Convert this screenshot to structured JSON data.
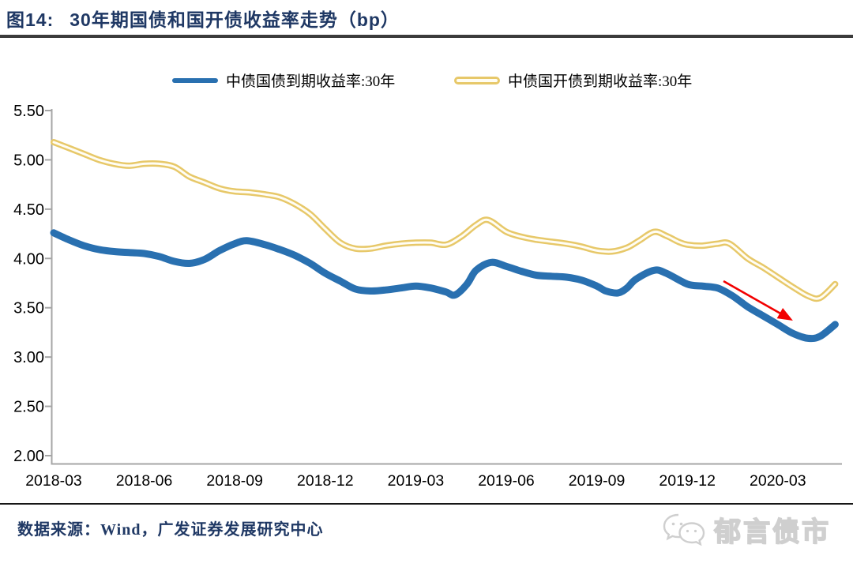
{
  "figure": {
    "label": "图14:",
    "title": "30年期国债和国开债收益率走势（bp）"
  },
  "legend": [
    {
      "label": "中债国债到期收益率:30年",
      "color": "#2970B0",
      "style": "solid"
    },
    {
      "label": "中债国开债到期收益率:30年",
      "color": "#E7C869",
      "style": "hollow"
    }
  ],
  "footer": {
    "source": "数据来源：Wind，广发证券发展研究中心",
    "watermark": "郁言债市",
    "watermark_icon": "wechat-icon",
    "watermark_color": "#cfcfcf"
  },
  "chart_data": {
    "type": "line",
    "title": "30年期国债和国开债收益率走势（bp）",
    "x_unit": "months since 2018-03",
    "ylim": [
      2.0,
      5.5
    ],
    "grid": false,
    "legend_position": "top",
    "axis_color": "#A6A6A6",
    "y_ticks": [
      {
        "v": 5.5,
        "label": "5.50"
      },
      {
        "v": 5.0,
        "label": "5.00"
      },
      {
        "v": 4.5,
        "label": "4.50"
      },
      {
        "v": 4.0,
        "label": "4.00"
      },
      {
        "v": 3.5,
        "label": "3.50"
      },
      {
        "v": 3.0,
        "label": "3.00"
      },
      {
        "v": 2.5,
        "label": "2.50"
      },
      {
        "v": 2.0,
        "label": "2.00"
      }
    ],
    "x_ticks": [
      {
        "t": 0,
        "label": "2018-03"
      },
      {
        "t": 3,
        "label": "2018-06"
      },
      {
        "t": 6,
        "label": "2018-09"
      },
      {
        "t": 9,
        "label": "2018-12"
      },
      {
        "t": 12,
        "label": "2019-03"
      },
      {
        "t": 15,
        "label": "2019-06"
      },
      {
        "t": 18,
        "label": "2019-09"
      },
      {
        "t": 21,
        "label": "2019-12"
      },
      {
        "t": 24,
        "label": "2020-03"
      }
    ],
    "series": [
      {
        "name": "中债国开债到期收益率:30年",
        "key": "cdb-30y",
        "color": "#E7C869",
        "inner_color": "#FFFDF4",
        "width": 8,
        "inner_width": 3,
        "points": [
          [
            0,
            5.18
          ],
          [
            0.5,
            5.12
          ],
          [
            1,
            5.06
          ],
          [
            1.5,
            5.0
          ],
          [
            2,
            4.96
          ],
          [
            2.5,
            4.94
          ],
          [
            3,
            4.96
          ],
          [
            3.5,
            4.96
          ],
          [
            4,
            4.93
          ],
          [
            4.5,
            4.83
          ],
          [
            5,
            4.77
          ],
          [
            5.5,
            4.71
          ],
          [
            6,
            4.68
          ],
          [
            6.5,
            4.67
          ],
          [
            7,
            4.65
          ],
          [
            7.5,
            4.62
          ],
          [
            8,
            4.55
          ],
          [
            8.5,
            4.45
          ],
          [
            9,
            4.3
          ],
          [
            9.5,
            4.16
          ],
          [
            10,
            4.1
          ],
          [
            10.5,
            4.1
          ],
          [
            11,
            4.13
          ],
          [
            11.5,
            4.15
          ],
          [
            12,
            4.16
          ],
          [
            12.5,
            4.16
          ],
          [
            13,
            4.14
          ],
          [
            13.5,
            4.22
          ],
          [
            14,
            4.34
          ],
          [
            14.4,
            4.39
          ],
          [
            15,
            4.27
          ],
          [
            15.5,
            4.22
          ],
          [
            16,
            4.19
          ],
          [
            16.5,
            4.17
          ],
          [
            17,
            4.15
          ],
          [
            17.5,
            4.12
          ],
          [
            18,
            4.08
          ],
          [
            18.5,
            4.07
          ],
          [
            19,
            4.11
          ],
          [
            19.4,
            4.18
          ],
          [
            19.9,
            4.27
          ],
          [
            20.3,
            4.23
          ],
          [
            20.7,
            4.17
          ],
          [
            21,
            4.14
          ],
          [
            21.5,
            4.13
          ],
          [
            22,
            4.15
          ],
          [
            22.4,
            4.15
          ],
          [
            23,
            4.0
          ],
          [
            23.5,
            3.91
          ],
          [
            24,
            3.81
          ],
          [
            24.5,
            3.71
          ],
          [
            25,
            3.62
          ],
          [
            25.4,
            3.6
          ],
          [
            25.9,
            3.74
          ]
        ]
      },
      {
        "name": "中债国债到期收益率:30年",
        "key": "cgb-30y",
        "color": "#2970B0",
        "width": 9,
        "points": [
          [
            0,
            4.26
          ],
          [
            0.5,
            4.19
          ],
          [
            1,
            4.13
          ],
          [
            1.5,
            4.09
          ],
          [
            2,
            4.07
          ],
          [
            2.5,
            4.06
          ],
          [
            3,
            4.05
          ],
          [
            3.5,
            4.02
          ],
          [
            4,
            3.97
          ],
          [
            4.5,
            3.95
          ],
          [
            5,
            3.99
          ],
          [
            5.5,
            4.08
          ],
          [
            6,
            4.15
          ],
          [
            6.4,
            4.18
          ],
          [
            7,
            4.14
          ],
          [
            7.5,
            4.09
          ],
          [
            8,
            4.03
          ],
          [
            8.5,
            3.95
          ],
          [
            9,
            3.85
          ],
          [
            9.5,
            3.77
          ],
          [
            10,
            3.69
          ],
          [
            10.5,
            3.67
          ],
          [
            11,
            3.68
          ],
          [
            11.5,
            3.7
          ],
          [
            12,
            3.72
          ],
          [
            12.5,
            3.7
          ],
          [
            13,
            3.66
          ],
          [
            13.3,
            3.63
          ],
          [
            13.7,
            3.74
          ],
          [
            14,
            3.88
          ],
          [
            14.5,
            3.96
          ],
          [
            15,
            3.92
          ],
          [
            15.5,
            3.87
          ],
          [
            16,
            3.83
          ],
          [
            16.5,
            3.82
          ],
          [
            17,
            3.81
          ],
          [
            17.5,
            3.78
          ],
          [
            18,
            3.72
          ],
          [
            18.3,
            3.67
          ],
          [
            18.7,
            3.65
          ],
          [
            19,
            3.7
          ],
          [
            19.3,
            3.79
          ],
          [
            19.9,
            3.88
          ],
          [
            20.3,
            3.85
          ],
          [
            21,
            3.74
          ],
          [
            21.5,
            3.72
          ],
          [
            22,
            3.7
          ],
          [
            22.5,
            3.62
          ],
          [
            23,
            3.51
          ],
          [
            23.5,
            3.42
          ],
          [
            24,
            3.33
          ],
          [
            24.5,
            3.24
          ],
          [
            25,
            3.19
          ],
          [
            25.4,
            3.21
          ],
          [
            25.9,
            3.33
          ]
        ]
      }
    ],
    "annotation_arrow": {
      "color": "#F20000",
      "from_t": 22.2,
      "from_v": 3.77,
      "to_t": 24.5,
      "to_v": 3.37
    }
  }
}
